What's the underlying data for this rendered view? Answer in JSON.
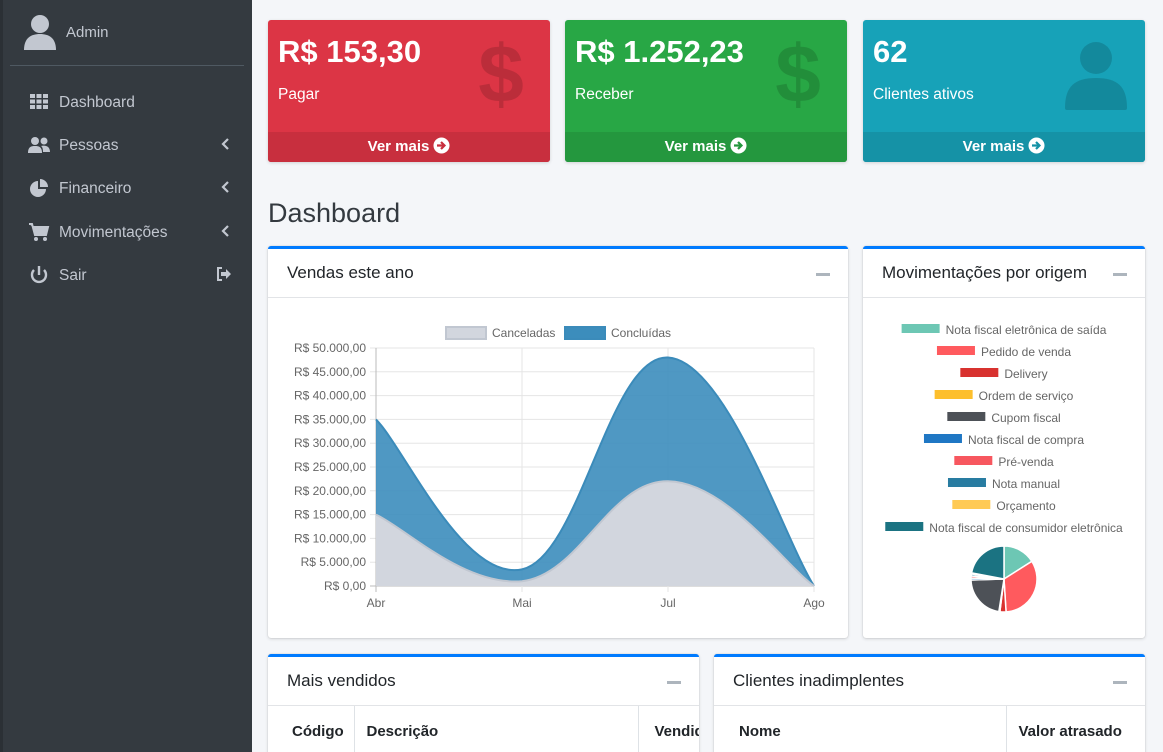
{
  "user": {
    "name": "Admin"
  },
  "nav": [
    {
      "label": "Dashboard",
      "icon": "grid-icon",
      "arrow": ""
    },
    {
      "label": "Pessoas",
      "icon": "users-icon",
      "arrow": "chevron-left-icon"
    },
    {
      "label": "Financeiro",
      "icon": "pie-chart-icon",
      "arrow": "chevron-left-icon"
    },
    {
      "label": "Movimentações",
      "icon": "cart-icon",
      "arrow": "chevron-left-icon"
    },
    {
      "label": "Sair",
      "icon": "power-icon",
      "arrow": "sign-out-icon"
    }
  ],
  "boxes": [
    {
      "value": "R$ 153,30",
      "label": "Pagar",
      "footer": "Ver mais",
      "color": "#dc3545",
      "footer_color": "#c82f3e",
      "icon": "dollar-icon"
    },
    {
      "value": "R$ 1.252,23",
      "label": "Receber",
      "footer": "Ver mais",
      "color": "#28a745",
      "footer_color": "#24973e",
      "icon": "dollar-icon"
    },
    {
      "value": "62",
      "label": "Clientes ativos",
      "footer": "Ver mais",
      "color": "#17a2b8",
      "footer_color": "#1592a6",
      "icon": "user-icon"
    }
  ],
  "page_title": "Dashboard",
  "sales_card": {
    "title": "Vendas este ano"
  },
  "origin_card": {
    "title": "Movimentações por origem"
  },
  "best_sellers": {
    "title": "Mais vendidos",
    "columns": [
      "Código",
      "Descrição",
      "Vendid"
    ]
  },
  "defaulters": {
    "title": "Clientes inadimplentes",
    "columns": [
      "Nome",
      "Valor atrasado"
    ]
  },
  "chart_data": [
    {
      "type": "area",
      "title": "Vendas este ano",
      "categories": [
        "Abr",
        "Mai",
        "Jul",
        "Ago"
      ],
      "y_tick_labels": [
        "R$ 0,00",
        "R$ 5.000,00",
        "R$ 10.000,00",
        "R$ 15.000,00",
        "R$ 20.000,00",
        "R$ 25.000,00",
        "R$ 30.000,00",
        "R$ 35.000,00",
        "R$ 40.000,00",
        "R$ 45.000,00",
        "R$ 50.000,00"
      ],
      "ylim": [
        0,
        50000
      ],
      "legend_position": "top",
      "series": [
        {
          "name": "Canceladas",
          "values": [
            15000,
            1000,
            22000,
            0
          ],
          "fill": "#d2d6de",
          "stroke": "#c1c7d1"
        },
        {
          "name": "Concluídas",
          "values": [
            35000,
            3500,
            48000,
            0
          ],
          "fill": "#3c8dbc",
          "stroke": "#3b8bba"
        }
      ]
    },
    {
      "type": "pie",
      "title": "Movimentações por origem",
      "legend_position": "top",
      "labels": [
        "Nota fiscal eletrônica de saída",
        "Pedido de venda",
        "Delivery",
        "Ordem de serviço",
        "Cupom fiscal",
        "Nota fiscal de compra",
        "Pré-venda",
        "Nota manual",
        "Orçamento",
        "Nota fiscal de consumidor eletrônica"
      ],
      "values": [
        16,
        33,
        3,
        0.5,
        22,
        1,
        1,
        1,
        0.5,
        22
      ],
      "colors": [
        "#6dc7b4",
        "#ff5a5e",
        "#d8322f",
        "#fdbf2d",
        "#4d5157",
        "#1f77c4",
        "#f7575f",
        "#287ca1",
        "#ffca54",
        "#1b7382"
      ]
    }
  ]
}
